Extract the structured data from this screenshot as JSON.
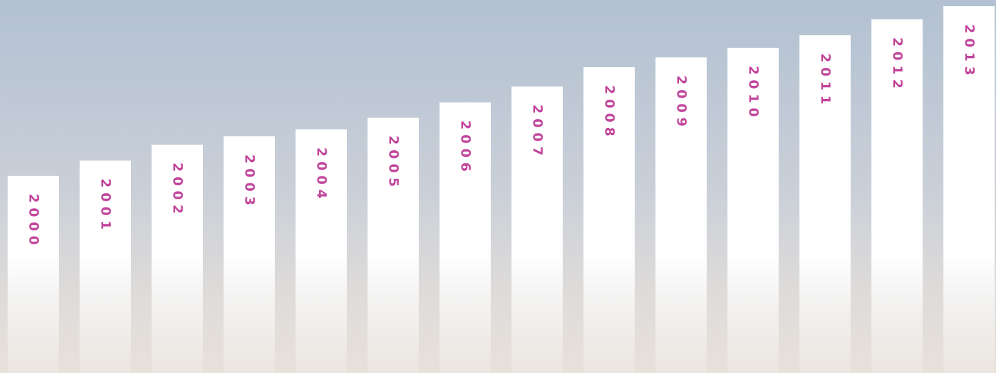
{
  "chart_data": {
    "type": "bar",
    "categories": [
      "2000",
      "2001",
      "2002",
      "2003",
      "2004",
      "2005",
      "2006",
      "2007",
      "2008",
      "2009",
      "2010",
      "2011",
      "2012",
      "2013"
    ],
    "values": [
      285,
      307,
      330,
      342,
      352,
      369,
      391,
      414,
      442,
      456,
      470,
      488,
      511,
      530
    ],
    "ylim": [
      0,
      539
    ],
    "color": "#ffffff",
    "label_color": "#c2449b"
  }
}
